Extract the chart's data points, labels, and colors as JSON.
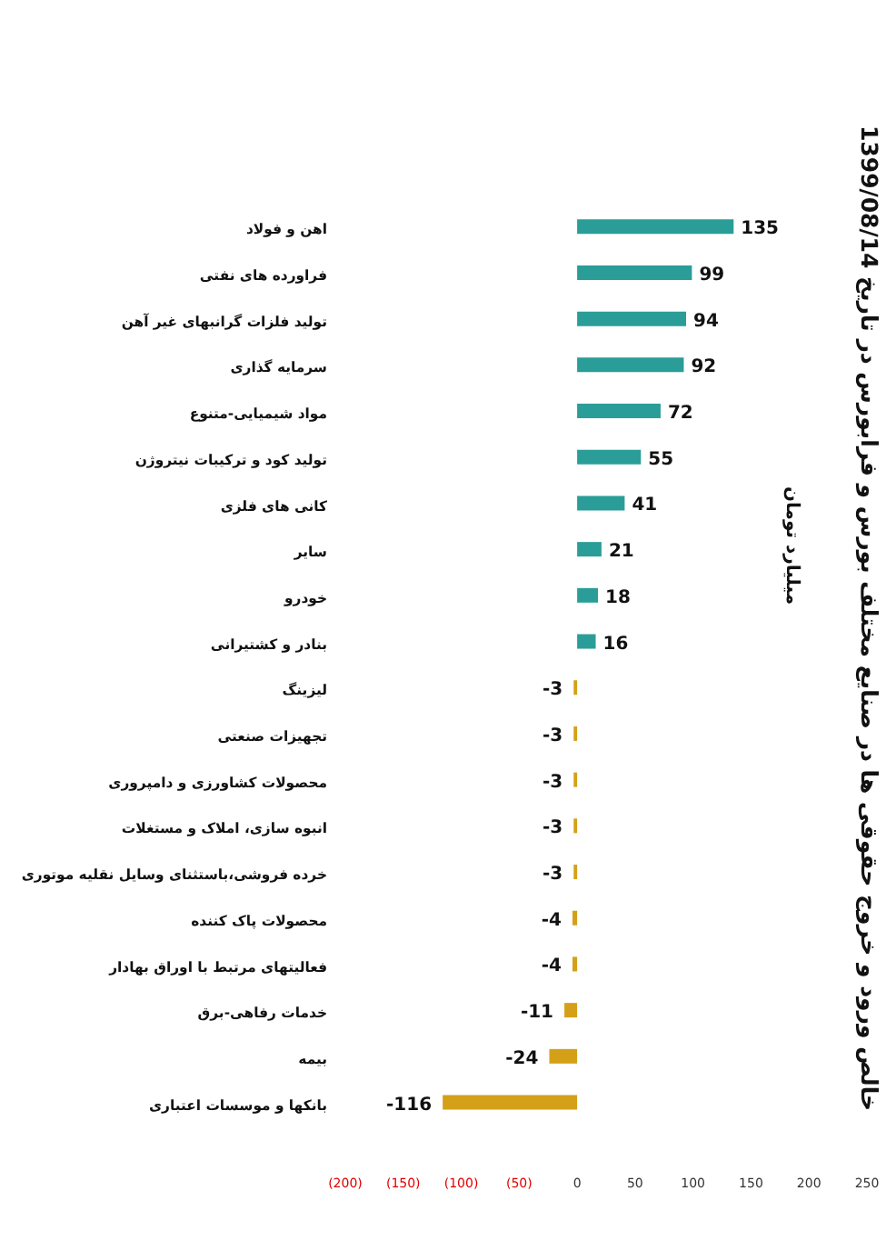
{
  "chart_data": {
    "type": "bar",
    "orientation": "horizontal",
    "title": "خالص ورود و خروج حقوقی ها در صنایع مختلف  بورس و فرابورس در تاریخ 1399/08/14",
    "annotations": [
      "میلیارد تومان"
    ],
    "categories": [
      "اهن و فولاد",
      "فراورده های نفتی",
      "تولید فلزات گرانبهای غیر آهن",
      "سرمایه گذاری",
      "مواد شیمیایی-متنوع",
      "تولید کود و ترکیبات نیتروژن",
      "کانی های فلزی",
      "سایر",
      "خودرو",
      "بنادر و کشتیرانی",
      "لیزینگ",
      "تجهیزات صنعتی",
      "محصولات کشاورزی و دامپروری",
      "انبوه سازی، املاک و مستغلات",
      "خرده فروشی،باستثنای وسایل نقلیه موتوری",
      "محصولات پاک کننده",
      "فعالیتهای مرتبط با اوراق بهادار",
      "خدمات رفاهی-برق",
      "بیمه",
      "بانکها و موسسات اعتباری"
    ],
    "values": [
      135,
      99,
      94,
      92,
      72,
      55,
      41,
      21,
      18,
      16,
      -3,
      -3,
      -3,
      -3,
      -3,
      -4,
      -4,
      -11,
      -24,
      -116
    ],
    "colors": [
      "#2a9d98",
      "#2a9d98",
      "#2a9d98",
      "#2a9d98",
      "#2a9d98",
      "#2a9d98",
      "#2a9d98",
      "#2a9d98",
      "#2a9d98",
      "#2a9d98",
      "#d4a017",
      "#d4a017",
      "#d4a017",
      "#d4a017",
      "#d4a017",
      "#d4a017",
      "#d4a017",
      "#d4a017",
      "#d4a017",
      "#d4a017"
    ],
    "xlim": [
      -200,
      250
    ],
    "xticks": [
      {
        "value": -200,
        "label": "(200)"
      },
      {
        "value": -150,
        "label": "(150)"
      },
      {
        "value": -100,
        "label": "(100)"
      },
      {
        "value": -50,
        "label": "(50)"
      },
      0,
      50,
      100,
      150,
      200,
      250
    ],
    "data_labels": true
  }
}
